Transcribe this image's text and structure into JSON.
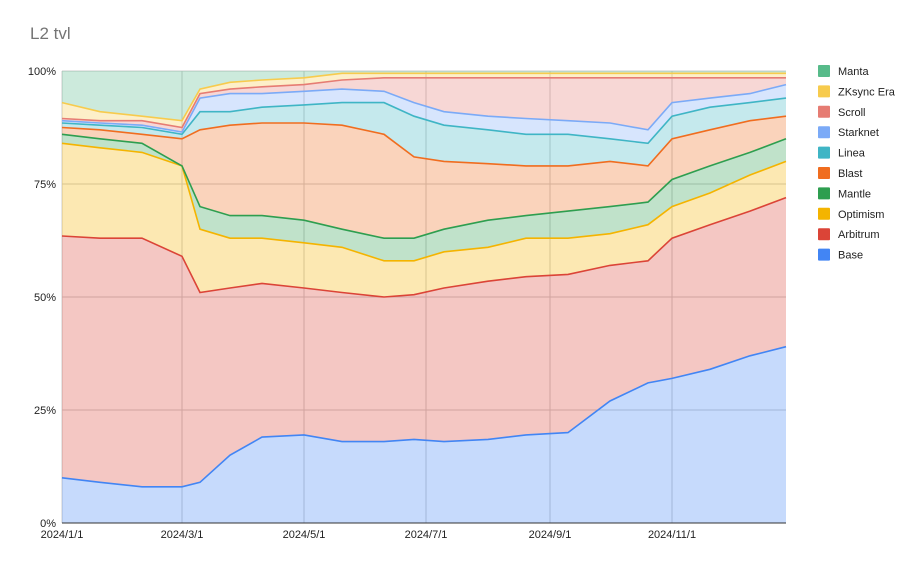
{
  "chart_data": {
    "type": "area",
    "stacked": true,
    "percent": true,
    "title": "L2 tvl",
    "xlabel": "",
    "ylabel": "",
    "ylim": [
      0,
      100
    ],
    "y_ticks": [
      "0%",
      "25%",
      "50%",
      "75%",
      "100%"
    ],
    "x_ticks": [
      "2024/1/1",
      "2024/3/1",
      "2024/5/1",
      "2024/7/1",
      "2024/9/1",
      "2024/11/1"
    ],
    "x_range": [
      "2024-01-01",
      "2024-12-28"
    ],
    "grid": true,
    "legend_position": "right",
    "x": [
      "2024-01-01",
      "2024-01-20",
      "2024-02-10",
      "2024-03-01",
      "2024-03-10",
      "2024-03-25",
      "2024-04-10",
      "2024-05-01",
      "2024-05-20",
      "2024-06-10",
      "2024-06-25",
      "2024-07-10",
      "2024-08-01",
      "2024-08-20",
      "2024-09-10",
      "2024-10-01",
      "2024-10-20",
      "2024-11-01",
      "2024-11-20",
      "2024-12-10",
      "2024-12-28"
    ],
    "cumulative_top": [
      {
        "name": "Base",
        "values": [
          10,
          9,
          8,
          8,
          9,
          15,
          19,
          19.5,
          18,
          18,
          18.5,
          18,
          18.5,
          19.5,
          20,
          27,
          31,
          32,
          34,
          37,
          39
        ]
      },
      {
        "name": "Arbitrum",
        "values": [
          63.5,
          63,
          63,
          59,
          51,
          52,
          53,
          52,
          51,
          50,
          50.5,
          52,
          53.5,
          54.5,
          55,
          57,
          58,
          63,
          66,
          69,
          72
        ]
      },
      {
        "name": "Optimism",
        "values": [
          84,
          83,
          82,
          79,
          65,
          63,
          63,
          62,
          61,
          58,
          58,
          60,
          61,
          63,
          63,
          64,
          66,
          70,
          73,
          77,
          80
        ]
      },
      {
        "name": "Mantle",
        "values": [
          86,
          85,
          84,
          79,
          70,
          68,
          68,
          67,
          65,
          63,
          63,
          65,
          67,
          68,
          69,
          70,
          71,
          76,
          79,
          82,
          85
        ]
      },
      {
        "name": "Blast",
        "values": [
          87.5,
          87,
          86,
          85,
          87,
          88,
          88.5,
          88.5,
          88,
          86,
          81,
          80,
          79.5,
          79,
          79,
          80,
          79,
          85,
          87,
          89,
          90
        ]
      },
      {
        "name": "Linea",
        "values": [
          88.5,
          88,
          87.5,
          86,
          91,
          91,
          92,
          92.5,
          93,
          93,
          90,
          88,
          87,
          86,
          86,
          85,
          84,
          90,
          92,
          93,
          94
        ]
      },
      {
        "name": "Starknet",
        "values": [
          89,
          88.5,
          88,
          86.5,
          94,
          95,
          95,
          95.5,
          96,
          95.5,
          93,
          91,
          90,
          89.5,
          89,
          88.5,
          87,
          93,
          94,
          95,
          97
        ]
      },
      {
        "name": "Scroll",
        "values": [
          89.5,
          89,
          89,
          87.5,
          95,
          96,
          96.5,
          97,
          98,
          98.5,
          98.5,
          98.5,
          98.5,
          98.5,
          98.5,
          98.5,
          98.5,
          98.5,
          98.5,
          98.5,
          98.5
        ]
      },
      {
        "name": "ZKsync Era",
        "values": [
          93,
          91,
          90,
          89,
          96,
          97.5,
          98,
          98.5,
          99.5,
          99.5,
          99.5,
          99.5,
          99.5,
          99.5,
          99.5,
          99.5,
          99.5,
          99.5,
          99.5,
          99.5,
          99.5
        ]
      },
      {
        "name": "Manta",
        "values": [
          100,
          100,
          100,
          100,
          100,
          100,
          100,
          100,
          100,
          100,
          100,
          100,
          100,
          100,
          100,
          100,
          100,
          100,
          100,
          100,
          100
        ]
      }
    ],
    "colors": {
      "Manta": "#57bb8a",
      "ZKsync Era": "#f7cb4d",
      "Scroll": "#e67c73",
      "Starknet": "#7baaf7",
      "Linea": "#3fb5c5",
      "Blast": "#f06d1f",
      "Mantle": "#2e9e4f",
      "Optimism": "#f4b400",
      "Arbitrum": "#db4437",
      "Base": "#4285f4"
    },
    "legend": [
      "Manta",
      "ZKsync Era",
      "Scroll",
      "Starknet",
      "Linea",
      "Blast",
      "Mantle",
      "Optimism",
      "Arbitrum",
      "Base"
    ]
  }
}
